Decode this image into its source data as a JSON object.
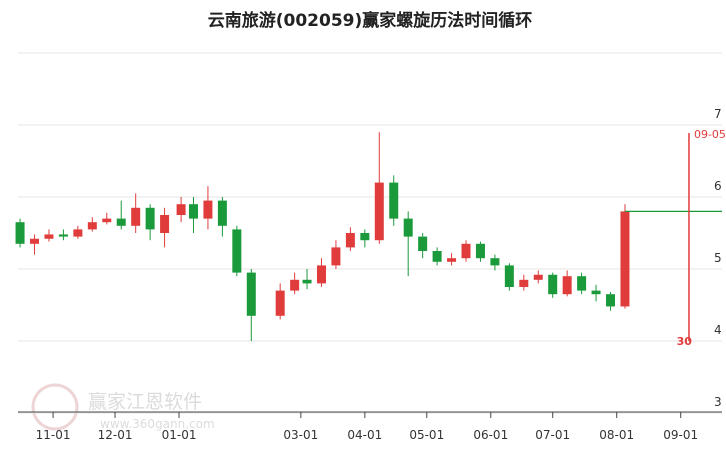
{
  "chart_data": {
    "type": "candlestick",
    "title": "云南旅游(002059)赢家螺旋历法时间循环",
    "watermark": "赢家江恩软件",
    "watermark_url": "www.360gann.com",
    "up_color": "#e03c3c",
    "down_color": "#1a9a3a",
    "x": [
      "10-16",
      "10-23",
      "10-30",
      "11-06",
      "11-13",
      "11-20",
      "11-27",
      "12-04",
      "12-11",
      "12-18",
      "12-25",
      "01-02",
      "01-08",
      "01-15",
      "01-22",
      "01-29",
      "02-05",
      "02-19",
      "02-26",
      "03-04",
      "03-11",
      "03-18",
      "03-25",
      "04-01",
      "04-08",
      "04-15",
      "04-22",
      "04-29",
      "05-06",
      "05-13",
      "05-20",
      "05-27",
      "06-03",
      "06-10",
      "06-17",
      "06-24",
      "07-01",
      "07-08",
      "07-15",
      "07-22",
      "07-29",
      "08-05"
    ],
    "open": [
      5.65,
      5.35,
      5.42,
      5.48,
      5.45,
      5.55,
      5.65,
      5.7,
      5.6,
      5.85,
      5.5,
      5.75,
      5.9,
      5.7,
      5.95,
      5.55,
      4.95,
      4.35,
      4.7,
      4.85,
      4.8,
      5.05,
      5.3,
      5.5,
      5.4,
      6.2,
      5.7,
      5.45,
      5.25,
      5.1,
      5.15,
      5.35,
      5.15,
      5.05,
      4.75,
      4.85,
      4.92,
      4.65,
      4.9,
      4.7,
      4.65,
      4.48
    ],
    "close": [
      5.35,
      5.42,
      5.48,
      5.45,
      5.55,
      5.65,
      5.7,
      5.6,
      5.85,
      5.55,
      5.75,
      5.9,
      5.7,
      5.95,
      5.6,
      4.95,
      4.35,
      4.7,
      4.85,
      4.8,
      5.05,
      5.3,
      5.5,
      5.4,
      6.2,
      5.7,
      5.45,
      5.25,
      5.1,
      5.15,
      5.35,
      5.15,
      5.05,
      4.75,
      4.85,
      4.92,
      4.65,
      4.9,
      4.7,
      4.65,
      4.48,
      5.8
    ],
    "high": [
      5.7,
      5.48,
      5.55,
      5.55,
      5.6,
      5.72,
      5.78,
      5.95,
      6.05,
      5.9,
      5.85,
      6.0,
      6.0,
      6.15,
      6.0,
      5.6,
      5.0,
      4.8,
      4.95,
      5.0,
      5.15,
      5.4,
      5.58,
      5.55,
      6.9,
      6.3,
      5.8,
      5.5,
      5.3,
      5.22,
      5.4,
      5.38,
      5.2,
      5.08,
      4.92,
      4.98,
      4.95,
      4.98,
      4.95,
      4.78,
      4.68,
      5.9
    ],
    "low": [
      5.3,
      5.2,
      5.38,
      5.4,
      5.42,
      5.52,
      5.62,
      5.55,
      5.5,
      5.4,
      5.3,
      5.65,
      5.5,
      5.55,
      5.45,
      4.9,
      4.0,
      4.3,
      4.65,
      4.72,
      4.75,
      5.0,
      5.25,
      5.3,
      5.35,
      5.6,
      4.9,
      5.15,
      5.05,
      5.05,
      5.1,
      5.1,
      4.98,
      4.7,
      4.7,
      4.8,
      4.6,
      4.62,
      4.65,
      4.55,
      4.42,
      4.45
    ],
    "xlim": [
      "10-15",
      "09-21"
    ],
    "xticks": [
      "11-01",
      "12-01",
      "01-01",
      "03-01",
      "04-01",
      "05-01",
      "06-01",
      "07-01",
      "08-01",
      "09-01"
    ],
    "ylim": [
      3,
      8
    ],
    "yticks": [
      3,
      4,
      5,
      6,
      7,
      8
    ],
    "ytick_labels_shown": [
      3,
      4,
      5,
      6,
      7
    ],
    "projection_level": 5.8,
    "projection_color": "#1a9a3a",
    "cycle_marker": {
      "date": "09-05",
      "label": "30",
      "color": "#e03c3c"
    },
    "grid": true
  }
}
